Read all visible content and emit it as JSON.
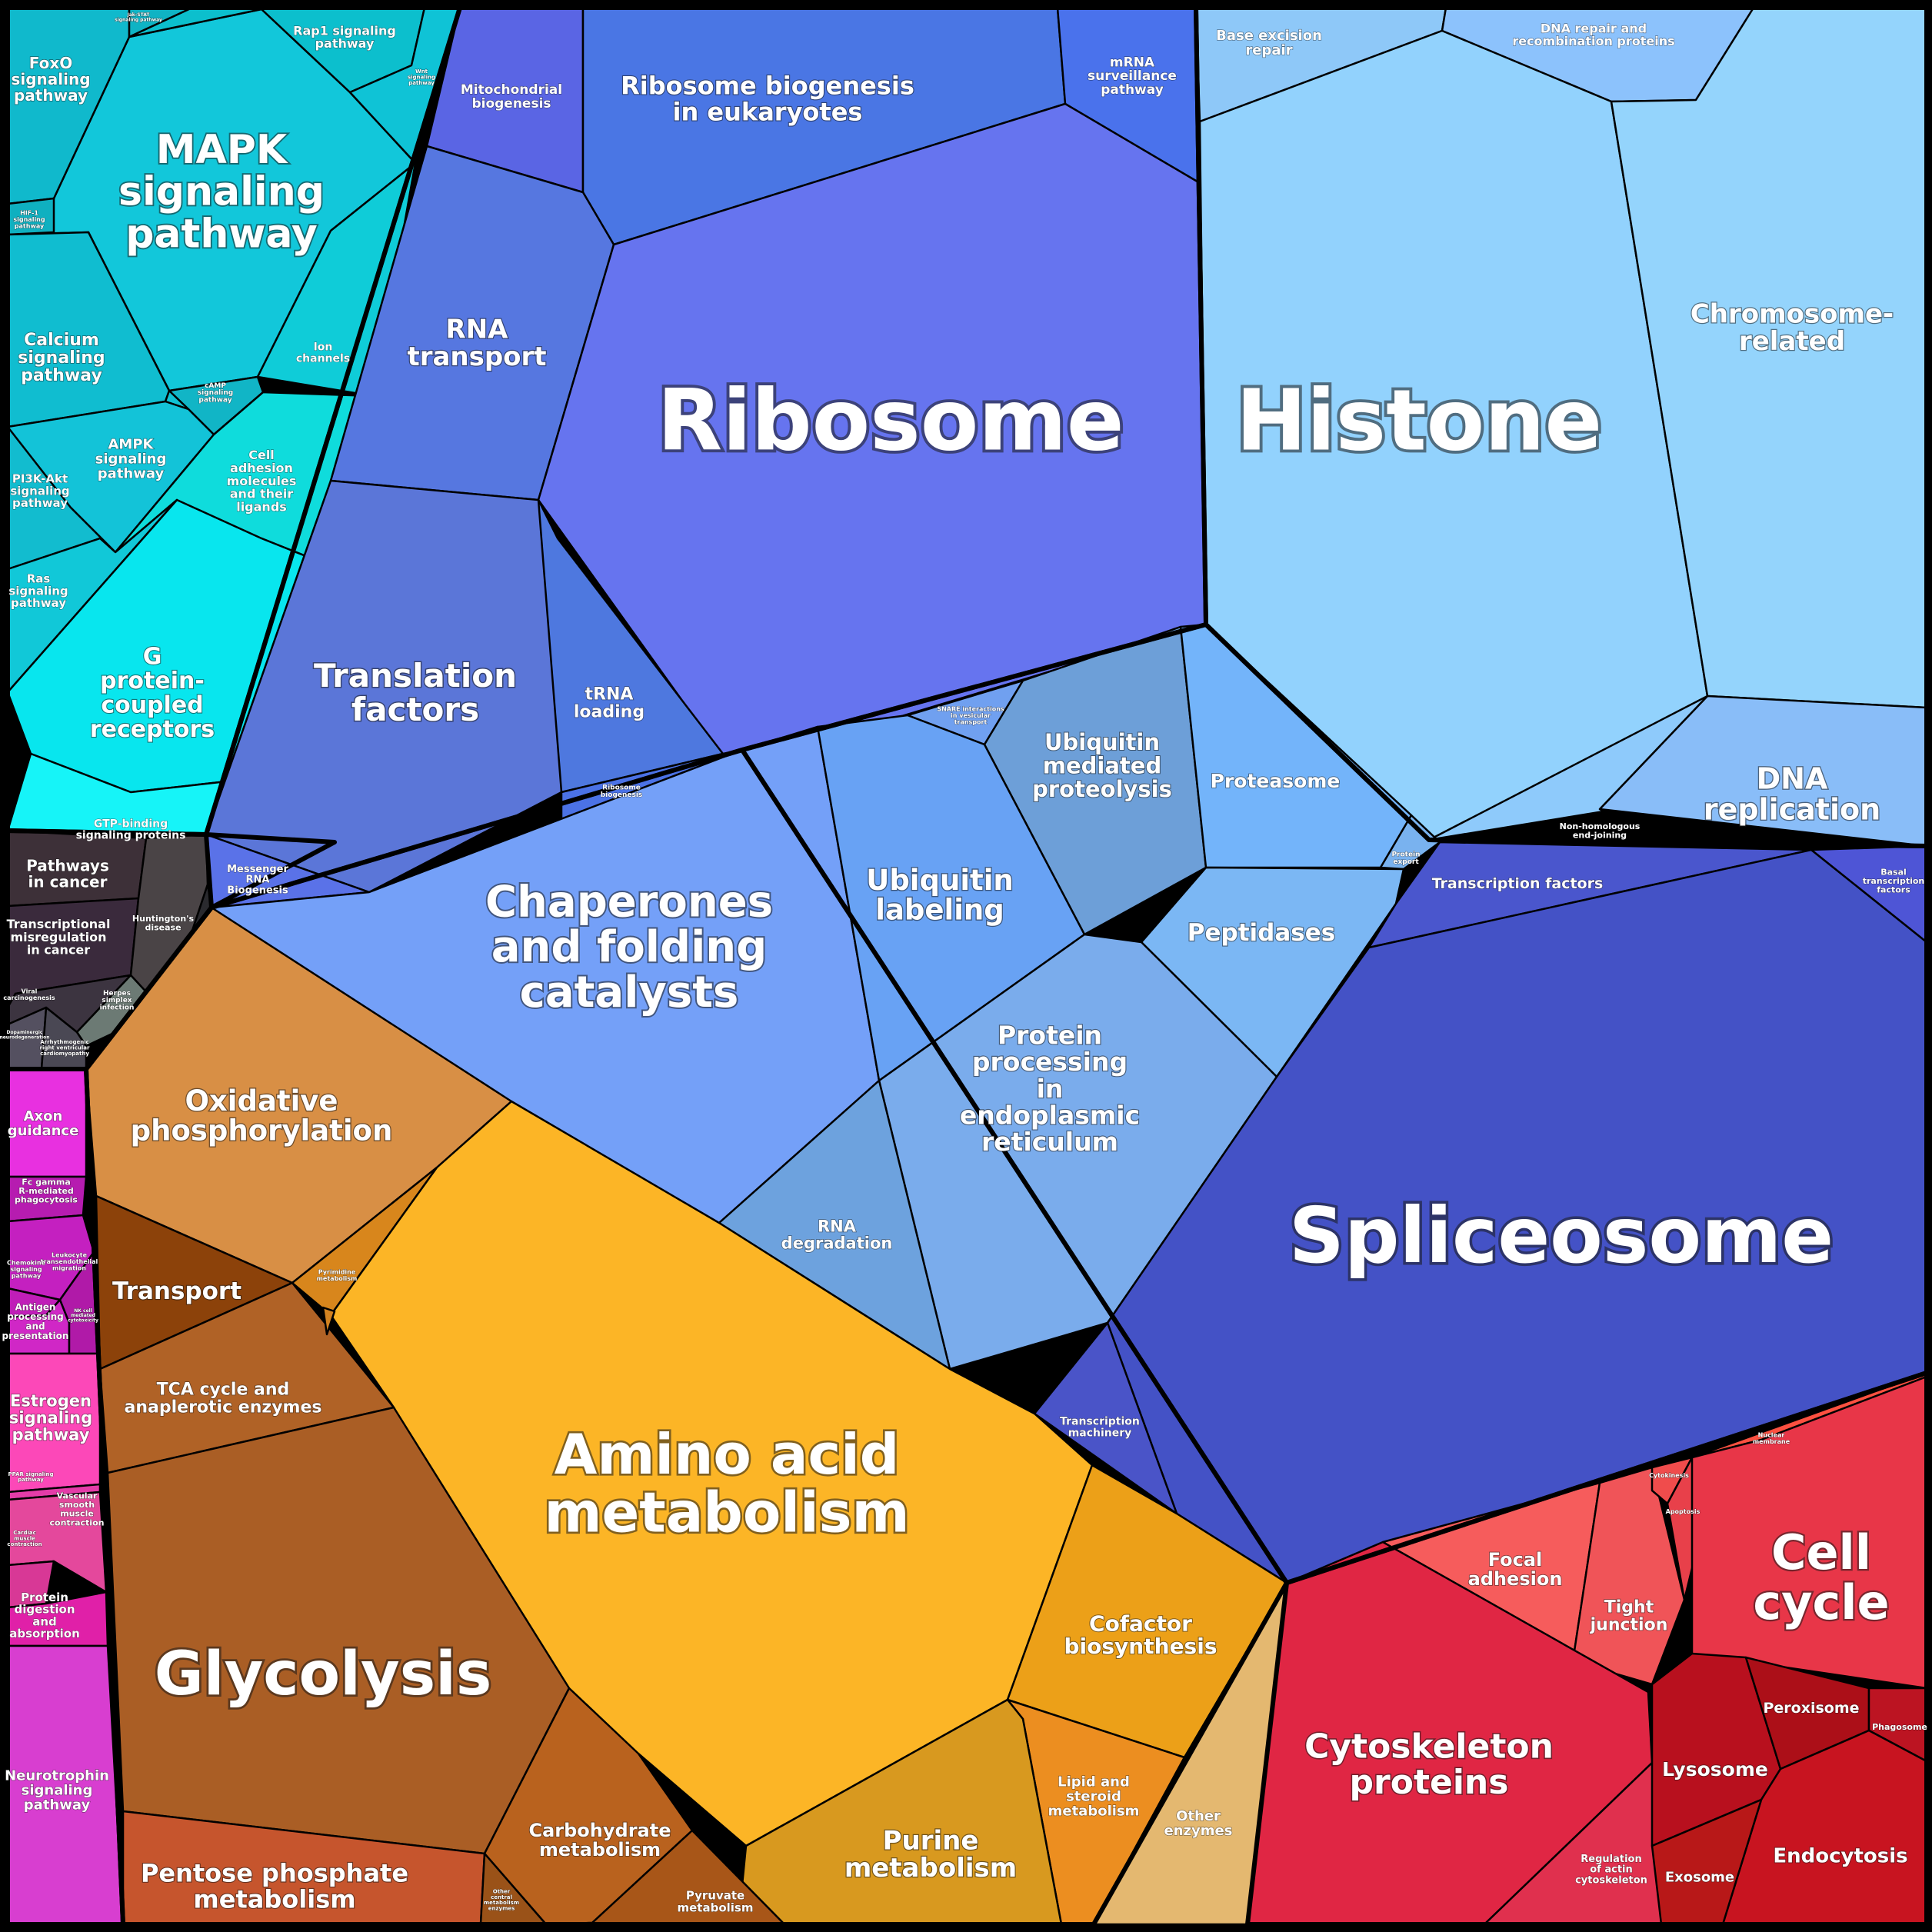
{
  "cells": [
    {
      "id": "mapk",
      "label": [
        "MAPK",
        "signaling",
        "pathway"
      ],
      "color": "#12c7da"
    },
    {
      "id": "foxo",
      "label": [
        "FoxO",
        "signaling",
        "pathway"
      ],
      "color": "#10b9cc"
    },
    {
      "id": "jakstat",
      "label": [
        "Jak-STAT",
        "signaling pathway"
      ],
      "color": "#0fb3c4"
    },
    {
      "id": "rap1",
      "label": [
        "Rap1 signaling",
        "pathway"
      ],
      "color": "#0cbfcd"
    },
    {
      "id": "wnt",
      "label": [
        "Wnt",
        "signaling",
        "pathway"
      ],
      "color": "#0fc3d6"
    },
    {
      "id": "hif1",
      "label": [
        "HIF-1",
        "signaling",
        "pathway"
      ],
      "color": "#0fb0c0"
    },
    {
      "id": "calcium",
      "label": [
        "Calcium",
        "signaling",
        "pathway"
      ],
      "color": "#10bdd0"
    },
    {
      "id": "ion",
      "label": [
        "Ion",
        "channels"
      ],
      "color": "#0fccd8"
    },
    {
      "id": "small1",
      "label": [],
      "color": "#10c2d3"
    },
    {
      "id": "camp",
      "label": [
        "cAMP",
        "signaling",
        "pathway"
      ],
      "color": "#11b5c6"
    },
    {
      "id": "ampk",
      "label": [
        "AMPK",
        "signaling",
        "pathway"
      ],
      "color": "#13c3d8"
    },
    {
      "id": "pi3k",
      "label": [
        "PI3K-Akt",
        "signaling",
        "pathway"
      ],
      "color": "#12bccf"
    },
    {
      "id": "celladh",
      "label": [
        "Cell",
        "adhesion",
        "molecules",
        "and their",
        "ligands"
      ],
      "color": "#0fdcdc"
    },
    {
      "id": "ras",
      "label": [
        "Ras",
        "signaling",
        "pathway"
      ],
      "color": "#11c8d8"
    },
    {
      "id": "gpcr",
      "label": [
        "G",
        "protein-",
        "coupled",
        "receptors"
      ],
      "color": "#08e6ee"
    },
    {
      "id": "gtp",
      "label": [
        "GTP-binding",
        "signaling proteins"
      ],
      "color": "#16f4f8"
    },
    {
      "id": "mito",
      "label": [
        "Mitochondrial",
        "biogenesis"
      ],
      "color": "#5a65e4"
    },
    {
      "id": "ribobio",
      "label": [
        "Ribosome biogenesis",
        "in eukaryotes"
      ],
      "color": "#4a76e4"
    },
    {
      "id": "mrna",
      "label": [
        "mRNA",
        "surveillance",
        "pathway"
      ],
      "color": "#4a72ec"
    },
    {
      "id": "rnatransport",
      "label": [
        "RNA",
        "transport"
      ],
      "color": "#5677e0"
    },
    {
      "id": "ribosome",
      "label": [
        "Ribosome"
      ],
      "color": "#6674ef"
    },
    {
      "id": "translation",
      "label": [
        "Translation",
        "factors"
      ],
      "color": "#5b76d8"
    },
    {
      "id": "trna",
      "label": [
        "tRNA",
        "loading"
      ],
      "color": "#4e78df"
    },
    {
      "id": "ribobiog2",
      "label": [
        "Ribosome",
        "biogenesis"
      ],
      "color": "#4b72e6"
    },
    {
      "id": "messenger",
      "label": [
        "Messenger",
        "RNA",
        "Biogenesis"
      ],
      "color": "#5a72e8"
    },
    {
      "id": "baseexc",
      "label": [
        "Base excision",
        "repair"
      ],
      "color": "#8ec8f8"
    },
    {
      "id": "dnarepair",
      "label": [
        "DNA repair and",
        "recombination proteins"
      ],
      "color": "#8cc2fc"
    },
    {
      "id": "histone",
      "label": [
        "Histone"
      ],
      "color": "#92d2fd"
    },
    {
      "id": "chromosome",
      "label": [
        "Chromosome-",
        "related"
      ],
      "color": "#94d4fc"
    },
    {
      "id": "dnarep",
      "label": [
        "DNA",
        "replication"
      ],
      "color": "#89bdf8"
    },
    {
      "id": "nhej",
      "label": [
        "Non-homologous",
        "end-joining"
      ],
      "color": "#8ecafb"
    },
    {
      "id": "snare",
      "label": [
        "SNARE interactions",
        "in vesicular",
        "transport"
      ],
      "color": "#70a0f0"
    },
    {
      "id": "ubiqprot",
      "label": [
        "Ubiquitin",
        "mediated",
        "proteolysis"
      ],
      "color": "#6d9fd8"
    },
    {
      "id": "proteasome",
      "label": [
        "Proteasome"
      ],
      "color": "#73b4fa"
    },
    {
      "id": "protexport",
      "label": [
        "Protein",
        "export"
      ],
      "color": "#79b2ef"
    },
    {
      "id": "chaperones",
      "label": [
        "Chaperones",
        "and folding",
        "catalysts"
      ],
      "color": "#74a0f8"
    },
    {
      "id": "ubiqlab",
      "label": [
        "Ubiquitin",
        "labeling"
      ],
      "color": "#68a2f4"
    },
    {
      "id": "peptidases",
      "label": [
        "Peptidases"
      ],
      "color": "#7bb7f4"
    },
    {
      "id": "protproc",
      "label": [
        "Protein",
        "processing",
        "in",
        "endoplasmic",
        "reticulum"
      ],
      "color": "#7aacec"
    },
    {
      "id": "rnadeg",
      "label": [
        "RNA",
        "degradation"
      ],
      "color": "#6da2de"
    },
    {
      "id": "tfactors",
      "label": [
        "Transcription factors"
      ],
      "color": "#4a56cd"
    },
    {
      "id": "basal",
      "label": [
        "Basal",
        "transcription",
        "factors"
      ],
      "color": "#4e55d6"
    },
    {
      "id": "spliceosome",
      "label": [
        "Spliceosome"
      ],
      "color": "#4452c6"
    },
    {
      "id": "transmach",
      "label": [
        "Transcription",
        "machinery"
      ],
      "color": "#4a54c8"
    },
    {
      "id": "pathcancer",
      "label": [
        "Pathways",
        "in cancer"
      ],
      "color": "#3d3038"
    },
    {
      "id": "transmis",
      "label": [
        "Transcriptional",
        "misregulation",
        "in cancer"
      ],
      "color": "#3a2a3c"
    },
    {
      "id": "huntington",
      "label": [
        "Huntington's",
        "disease"
      ],
      "color": "#4a4446"
    },
    {
      "id": "viralcarc",
      "label": [
        "Viral",
        "carcinogenesis"
      ],
      "color": "#3c3440"
    },
    {
      "id": "herpes",
      "label": [
        "Herpes",
        "simplex",
        "infection"
      ],
      "color": "#6c7a74"
    },
    {
      "id": "dis1",
      "label": [
        "Dopaminergic",
        "neurodegeneration"
      ],
      "color": "#545060"
    },
    {
      "id": "dis2",
      "label": [
        "Arrhythmogenic",
        "right ventricular",
        "cardiomyopathy"
      ],
      "color": "#4a4854"
    },
    {
      "id": "dis3",
      "label": [],
      "color": "#2a2a2e"
    },
    {
      "id": "axon",
      "label": [
        "Axon",
        "guidance"
      ],
      "color": "#e830e0"
    },
    {
      "id": "fcgamma",
      "label": [
        "Fc gamma",
        "R-mediated",
        "phagocytosis"
      ],
      "color": "#b61cb0"
    },
    {
      "id": "leukocyte",
      "label": [
        "Leukocyte",
        "transendothelial",
        "migration"
      ],
      "color": "#c420c0"
    },
    {
      "id": "chemokine",
      "label": [
        "Chemokine",
        "signaling",
        "pathway"
      ],
      "color": "#c01eb8"
    },
    {
      "id": "antigen",
      "label": [
        "Antigen",
        "processing",
        "and",
        "presentation"
      ],
      "color": "#d027c6"
    },
    {
      "id": "nkcell",
      "label": [
        "NK cell",
        "mediated",
        "cytotoxicity"
      ],
      "color": "#b01aa8"
    },
    {
      "id": "estrogen",
      "label": [
        "Estrogen",
        "signaling",
        "pathway"
      ],
      "color": "#fc48b8"
    },
    {
      "id": "ppar",
      "label": [
        "PPAR signaling",
        "pathway"
      ],
      "color": "#e43ca8"
    },
    {
      "id": "vascular",
      "label": [
        "Vascular",
        "smooth",
        "muscle",
        "contraction"
      ],
      "color": "#e4489c"
    },
    {
      "id": "cardiac",
      "label": [
        "Cardiac",
        "muscle",
        "contraction"
      ],
      "color": "#d83896"
    },
    {
      "id": "protdig",
      "label": [
        "Protein",
        "digestion",
        "and",
        "absorption"
      ],
      "color": "#e020a8"
    },
    {
      "id": "neurotroph",
      "label": [
        "Neurotrophin",
        "signaling",
        "pathway"
      ],
      "color": "#d83ed0"
    },
    {
      "id": "oxphos",
      "label": [
        "Oxidative",
        "phosphorylation"
      ],
      "color": "#d88f45"
    },
    {
      "id": "transport",
      "label": [
        "Transport"
      ],
      "color": "#8c420a"
    },
    {
      "id": "pyrimidine",
      "label": [
        "Pyrimidine",
        "metabolism"
      ],
      "color": "#d8861c"
    },
    {
      "id": "tca",
      "label": [
        "TCA cycle and",
        "anaplerotic enzymes"
      ],
      "color": "#b06226"
    },
    {
      "id": "aminoacid",
      "label": [
        "Amino acid",
        "metabolism"
      ],
      "color": "#fcb526"
    },
    {
      "id": "glycolysis",
      "label": [
        "Glycolysis"
      ],
      "color": "#aa5e25"
    },
    {
      "id": "cofactor",
      "label": [
        "Cofactor",
        "biosynthesis"
      ],
      "color": "#eca018"
    },
    {
      "id": "lipid",
      "label": [
        "Lipid and",
        "steroid",
        "metabolism"
      ],
      "color": "#ec8e20"
    },
    {
      "id": "purine",
      "label": [
        "Purine",
        "metabolism"
      ],
      "color": "#d8991f"
    },
    {
      "id": "othenz",
      "label": [
        "Other",
        "enzymes"
      ],
      "color": "#e4b870"
    },
    {
      "id": "carbo",
      "label": [
        "Carbohydrate",
        "metabolism"
      ],
      "color": "#b9621e"
    },
    {
      "id": "pentose",
      "label": [
        "Pentose phosphate",
        "metabolism"
      ],
      "color": "#c6552d"
    },
    {
      "id": "othercentral",
      "label": [
        "Other",
        "central",
        "metabolism",
        "enzymes"
      ],
      "color": "#9a5218"
    },
    {
      "id": "pyruvate",
      "label": [
        "Pyruvate",
        "metabolism"
      ],
      "color": "#a85618"
    },
    {
      "id": "tinyorange",
      "label": [],
      "color": "#d28220"
    },
    {
      "id": "focaladh",
      "label": [
        "Focal",
        "adhesion"
      ],
      "color": "#f65c5c"
    },
    {
      "id": "tight",
      "label": [
        "Tight",
        "junction"
      ],
      "color": "#f05458"
    },
    {
      "id": "cytokinesis",
      "label": [
        "Cytokinesis"
      ],
      "color": "#f04c4c"
    },
    {
      "id": "nuclearmem",
      "label": [
        "Nuclear",
        "membrane"
      ],
      "color": "#fc5040"
    },
    {
      "id": "apoptosis",
      "label": [
        "Apoptosis"
      ],
      "color": "#e8404a"
    },
    {
      "id": "cellcycle",
      "label": [
        "Cell",
        "cycle"
      ],
      "color": "#e83648"
    },
    {
      "id": "cytoskel",
      "label": [
        "Cytoskeleton",
        "proteins"
      ],
      "color": "#e02644"
    },
    {
      "id": "regactin",
      "label": [
        "Regulation",
        "of actin",
        "cytoskeleton"
      ],
      "color": "#e0304e"
    },
    {
      "id": "lysosome",
      "label": [
        "Lysosome"
      ],
      "color": "#b8101e"
    },
    {
      "id": "peroxisome",
      "label": [
        "Peroxisome"
      ],
      "color": "#ac0f18"
    },
    {
      "id": "phagosome",
      "label": [
        "Phagosome"
      ],
      "color": "#bc1422"
    },
    {
      "id": "endocytosis",
      "label": [
        "Endocytosis"
      ],
      "color": "#c81420"
    },
    {
      "id": "exosome",
      "label": [
        "Exosome"
      ],
      "color": "#b81818"
    }
  ]
}
